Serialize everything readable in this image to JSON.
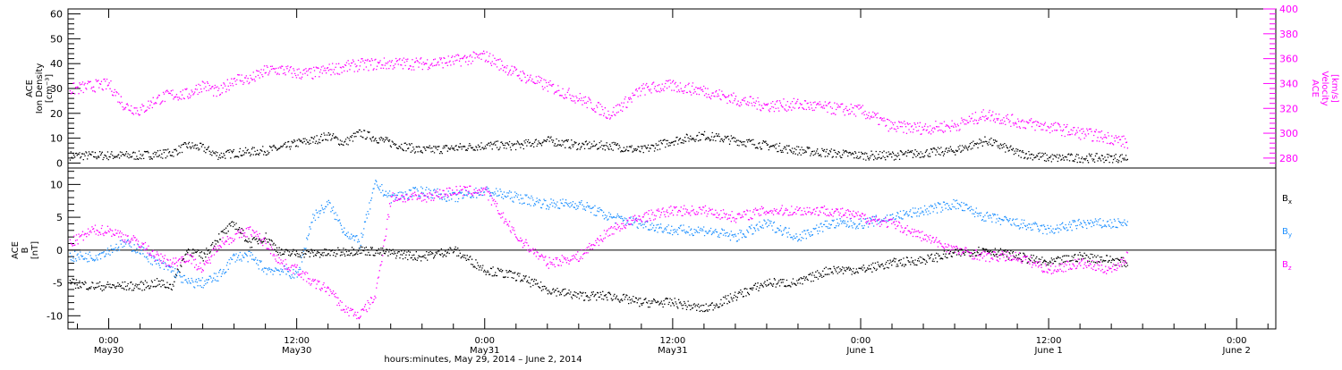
{
  "chart_data": [
    {
      "type": "scatter",
      "panel": "top",
      "left_axis_label": [
        "ACE",
        "Ion Density",
        "[cm⁻³]"
      ],
      "right_axis_label": [
        "ACE",
        "Velocity",
        "[km/s]"
      ],
      "left_ylim": [
        -2,
        62
      ],
      "left_yticks": [
        0,
        10,
        20,
        30,
        40,
        50,
        60
      ],
      "right_ylim": [
        272,
        400
      ],
      "right_yticks": [
        280,
        300,
        320,
        340,
        360,
        380,
        400
      ],
      "series": [
        {
          "name": "density",
          "axis": "left",
          "color": "#000000",
          "hours": [
            -2.5,
            0,
            2,
            4,
            5,
            6,
            7,
            8,
            10,
            11,
            12,
            13,
            14,
            15,
            16,
            18,
            20,
            22,
            24,
            26,
            28,
            30,
            32,
            34,
            36,
            38,
            40,
            42,
            44,
            46,
            48,
            50,
            52,
            54,
            56,
            58,
            60,
            62,
            64,
            65
          ],
          "values": [
            3,
            3,
            3,
            4,
            7,
            6,
            3,
            4,
            5,
            6,
            8,
            9,
            11,
            8,
            12,
            8,
            5,
            6,
            7,
            7,
            9,
            7,
            7,
            5,
            9,
            11,
            9,
            7,
            5,
            4,
            3,
            3,
            4,
            5,
            9,
            4,
            2,
            2,
            2,
            2
          ]
        },
        {
          "name": "velocity",
          "axis": "right",
          "color": "#ff00ff",
          "hours": [
            -2.5,
            -1,
            0,
            1,
            2,
            3,
            4,
            5,
            6,
            7,
            8,
            9,
            10,
            11,
            12,
            13,
            14,
            16,
            18,
            20,
            22,
            24,
            26,
            28,
            30,
            32,
            34,
            35,
            36,
            38,
            40,
            42,
            44,
            46,
            48,
            50,
            52,
            54,
            56,
            58,
            60,
            62,
            64,
            65
          ],
          "values": [
            335,
            338,
            339,
            322,
            318,
            327,
            331,
            331,
            339,
            332,
            344,
            343,
            350,
            351,
            348,
            348,
            351,
            355,
            356,
            356,
            358,
            362,
            348,
            338,
            328,
            315,
            335,
            337,
            338,
            334,
            327,
            322,
            323,
            320,
            318,
            305,
            304,
            306,
            315,
            309,
            305,
            300,
            296,
            292
          ]
        }
      ]
    },
    {
      "type": "scatter",
      "panel": "bottom",
      "left_axis_label": [
        "ACE",
        "B",
        "[nT]"
      ],
      "ylim": [
        -12,
        12.5
      ],
      "yticks": [
        -10,
        -5,
        0,
        5,
        10
      ],
      "zero_line": true,
      "x_tick_hours": [
        0,
        12,
        24,
        36,
        48,
        60,
        72
      ],
      "x_tick_labels": [
        [
          "0:00",
          "May30"
        ],
        [
          "12:00",
          "May30"
        ],
        [
          "0:00",
          "May31"
        ],
        [
          "12:00",
          "May31"
        ],
        [
          "0:00",
          "June 1"
        ],
        [
          "12:00",
          "June 1"
        ],
        [
          "0:00",
          "June 2"
        ]
      ],
      "xlim": [
        -2.6,
        74.5
      ],
      "xlabel": "hours:minutes, May 29, 2014 – June  2, 2014",
      "series": [
        {
          "name": "B",
          "subscript": "x",
          "color": "#000000",
          "hours": [
            -2.5,
            -1,
            0,
            1,
            2,
            3,
            4,
            5,
            6,
            7,
            8,
            9,
            10,
            11,
            12,
            14,
            16,
            18,
            20,
            22,
            24,
            26,
            28,
            30,
            32,
            34,
            36,
            38,
            40,
            42,
            44,
            46,
            48,
            50,
            52,
            54,
            56,
            58,
            60,
            62,
            64,
            65
          ],
          "values": [
            -5,
            -5.5,
            -5.5,
            -5.5,
            -5.5,
            -5,
            -5.5,
            0,
            -1,
            2,
            4,
            1,
            2,
            -0.5,
            -0.5,
            -0.5,
            0,
            -0.5,
            -1,
            0,
            -3,
            -4,
            -6,
            -7,
            -7,
            -8,
            -8,
            -9,
            -7,
            -5,
            -5,
            -3,
            -3,
            -2,
            -1.5,
            -0.5,
            0,
            -1,
            -2,
            -1,
            -1.5,
            -2
          ]
        },
        {
          "name": "B",
          "subscript": "y",
          "color": "#1e90ff",
          "hours": [
            -2.5,
            -1,
            0,
            1,
            2,
            3,
            4,
            5,
            6,
            7,
            8,
            9,
            10,
            11,
            12,
            13,
            14,
            15,
            16,
            17,
            18,
            20,
            22,
            24,
            26,
            28,
            30,
            32,
            34,
            36,
            38,
            40,
            42,
            44,
            46,
            48,
            50,
            52,
            54,
            56,
            58,
            60,
            62,
            64,
            65
          ],
          "values": [
            -1,
            -1,
            0,
            1,
            0,
            -2,
            -3,
            -5,
            -5,
            -4,
            -1,
            -1,
            -3,
            -3,
            -4,
            5,
            7,
            3,
            1,
            10,
            8,
            9,
            8,
            9,
            8,
            7,
            7,
            5,
            4,
            3,
            3,
            2,
            4,
            2,
            4,
            4,
            5,
            6,
            7,
            5,
            4,
            3,
            4,
            4,
            4
          ]
        },
        {
          "name": "B",
          "subscript": "z",
          "color": "#ff00ff",
          "hours": [
            -2.5,
            -1,
            0,
            1,
            2,
            3,
            4,
            5,
            6,
            7,
            8,
            9,
            10,
            11,
            12,
            13,
            14,
            15,
            16,
            17,
            18,
            20,
            22,
            24,
            26,
            28,
            30,
            32,
            34,
            36,
            38,
            40,
            42,
            44,
            46,
            48,
            50,
            52,
            54,
            56,
            58,
            60,
            62,
            64,
            65
          ],
          "values": [
            1,
            3,
            3,
            2,
            1,
            -1,
            -2,
            -1,
            -3,
            1,
            2,
            3,
            1,
            -2,
            -3,
            -5,
            -6,
            -9,
            -10,
            -7,
            8,
            8,
            9,
            9,
            2,
            -2,
            -1,
            3,
            5,
            6,
            6,
            5,
            6,
            6,
            6,
            5,
            4,
            2,
            0,
            -1,
            -1,
            -3,
            -2,
            -3,
            -1
          ]
        }
      ]
    }
  ]
}
